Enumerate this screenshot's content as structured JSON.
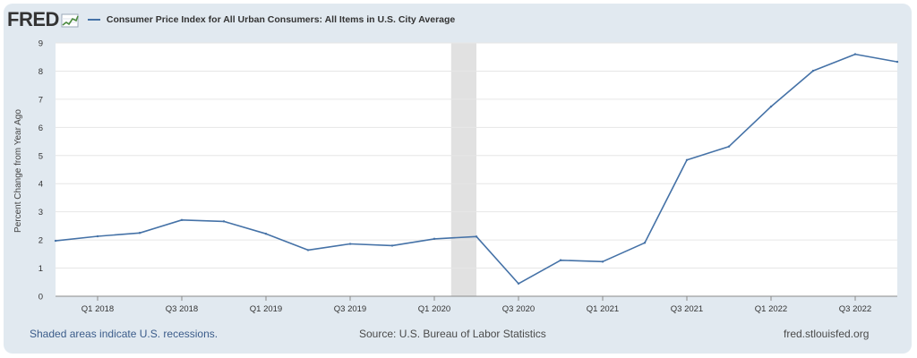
{
  "header": {
    "logo_text": "FRED",
    "legend_label": "Consumer Price Index for All Urban Consumers: All Items in U.S. City Average"
  },
  "chart_data": {
    "type": "line",
    "title": "",
    "xlabel": "",
    "ylabel": "Percent Change from Year Ago",
    "ylim": [
      0,
      9
    ],
    "yticks": [
      "0",
      "1",
      "2",
      "3",
      "4",
      "5",
      "6",
      "7",
      "8",
      "9"
    ],
    "x_ticks": [
      {
        "label": "Q1 2018",
        "quarter": 2018.0
      },
      {
        "label": "Q3 2018",
        "quarter": 2018.5
      },
      {
        "label": "Q1 2019",
        "quarter": 2019.0
      },
      {
        "label": "Q3 2019",
        "quarter": 2019.5
      },
      {
        "label": "Q1 2020",
        "quarter": 2020.0
      },
      {
        "label": "Q3 2020",
        "quarter": 2020.5
      },
      {
        "label": "Q1 2021",
        "quarter": 2021.0
      },
      {
        "label": "Q3 2021",
        "quarter": 2021.5
      },
      {
        "label": "Q1 2022",
        "quarter": 2022.0
      },
      {
        "label": "Q3 2022",
        "quarter": 2022.5
      }
    ],
    "grid": true,
    "recession": {
      "start": 2020.1,
      "end": 2020.25
    },
    "series": [
      {
        "name": "Consumer Price Index for All Urban Consumers: All Items in U.S. City Average",
        "color": "#4572a7",
        "x": [
          2017.75,
          2018.0,
          2018.25,
          2018.5,
          2018.75,
          2019.0,
          2019.25,
          2019.5,
          2019.75,
          2020.0,
          2020.25,
          2020.5,
          2020.75,
          2021.0,
          2021.25,
          2021.5,
          2021.75,
          2022.0,
          2022.25,
          2022.5,
          2022.75
        ],
        "values": [
          1.97,
          2.13,
          2.25,
          2.71,
          2.66,
          2.22,
          1.64,
          1.86,
          1.8,
          2.04,
          2.12,
          0.45,
          1.28,
          1.23,
          1.9,
          4.84,
          5.32,
          6.74,
          8.01,
          8.6,
          8.33
        ]
      }
    ]
  },
  "footer": {
    "note": "Shaded areas indicate U.S. recessions.",
    "source": "Source: U.S. Bureau of Labor Statistics",
    "url": "fred.stlouisfed.org"
  }
}
